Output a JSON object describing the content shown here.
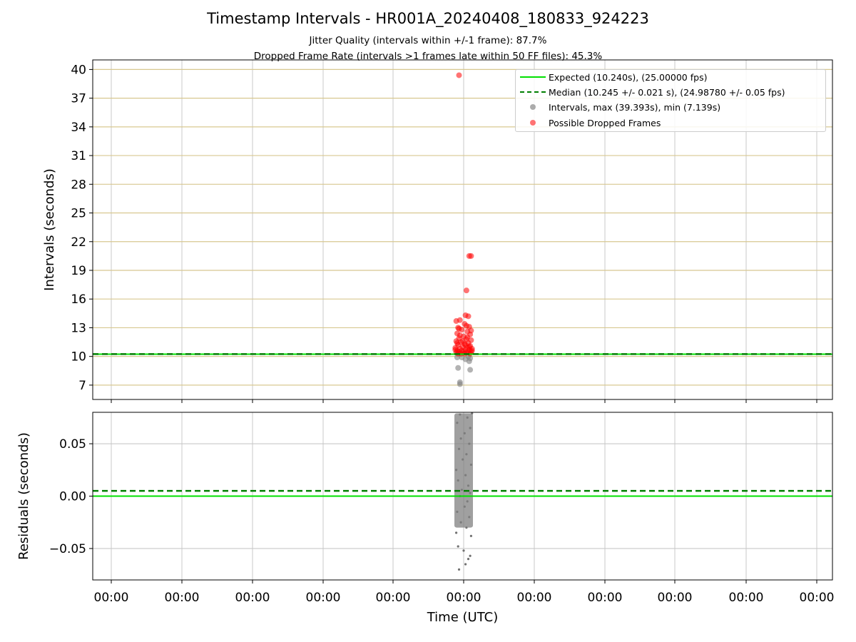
{
  "title": "Timestamp Intervals - HR001A_20240408_180833_924223",
  "subtitle_1": "Jitter Quality (intervals within +/-1 frame): 87.7%",
  "subtitle_2": "Dropped Frame Rate (intervals >1 frames late within 50 FF files): 45.3%",
  "legend": {
    "expected": "Expected (10.240s), (25.00000 fps)",
    "median": "Median (10.245 +/- 0.021 s), (24.98780 +/- 0.05 fps)",
    "intervals": "Intervals, max (39.393s), min (7.139s)",
    "dropped": "Possible Dropped Frames"
  },
  "colors": {
    "expected": "#00e000",
    "median": "#007f00",
    "intervals": "#808080",
    "dropped": "#ff0000",
    "hgrid_top": "#d8c890",
    "grid": "#c8c8c8"
  },
  "chart_data": [
    {
      "type": "scatter",
      "ylabel": "Intervals (seconds)",
      "ylim": [
        5.5,
        41
      ],
      "yticks": [
        7,
        10,
        13,
        16,
        19,
        22,
        25,
        28,
        31,
        34,
        37,
        40
      ],
      "ytick_labels": [
        "7",
        "10",
        "13",
        "16",
        "19",
        "22",
        "25",
        "28",
        "31",
        "34",
        "37",
        "40"
      ],
      "xtick_labels": [
        "00:00",
        "00:00",
        "00:00",
        "00:00",
        "00:00",
        "00:00",
        "00:00",
        "00:00",
        "00:00",
        "00:00",
        "00:00"
      ],
      "grid": true,
      "legend_position": "top-right",
      "expected_value": 10.24,
      "median_value": 10.245,
      "series": [
        {
          "name": "Intervals, max (39.393s), min (7.139s)",
          "points": [
            [
              -0.06,
              8.8
            ],
            [
              -0.04,
              7.3
            ],
            [
              -0.04,
              7.1
            ],
            [
              0.07,
              8.6
            ],
            [
              0.07,
              9.8
            ],
            [
              0.06,
              9.5
            ],
            [
              -0.07,
              9.9
            ],
            [
              0.02,
              9.7
            ],
            [
              0.05,
              10.0
            ],
            [
              -0.02,
              9.9
            ]
          ]
        },
        {
          "name": "Possible Dropped Frames",
          "points": [
            [
              -0.05,
              39.4
            ],
            [
              0.06,
              20.5
            ],
            [
              0.08,
              20.5
            ],
            [
              0.03,
              16.9
            ],
            [
              0.02,
              14.3
            ],
            [
              0.05,
              14.2
            ],
            [
              -0.04,
              13.8
            ],
            [
              -0.08,
              13.7
            ],
            [
              0.01,
              13.4
            ],
            [
              0.06,
              13.1
            ],
            [
              -0.06,
              13.0
            ],
            [
              -0.02,
              12.8
            ],
            [
              0.04,
              12.6
            ],
            [
              -0.07,
              12.4
            ],
            [
              0.07,
              12.3
            ],
            [
              0.0,
              12.1
            ],
            [
              -0.05,
              11.9
            ],
            [
              0.03,
              11.8
            ],
            [
              0.08,
              11.7
            ],
            [
              -0.08,
              11.6
            ],
            [
              -0.03,
              11.5
            ],
            [
              0.05,
              11.4
            ],
            [
              0.01,
              11.3
            ],
            [
              -0.06,
              11.2
            ],
            [
              0.07,
              11.1
            ],
            [
              -0.01,
              11.0
            ],
            [
              0.04,
              10.9
            ],
            [
              -0.09,
              10.9
            ],
            [
              0.09,
              10.8
            ],
            [
              -0.04,
              10.8
            ],
            [
              0.02,
              10.7
            ],
            [
              0.06,
              10.7
            ],
            [
              -0.07,
              10.6
            ],
            [
              -0.02,
              10.6
            ],
            [
              0.0,
              10.5
            ],
            [
              0.08,
              10.5
            ],
            [
              -0.05,
              10.5
            ],
            [
              0.03,
              10.4
            ],
            [
              -0.08,
              10.4
            ],
            [
              0.05,
              10.4
            ],
            [
              -0.03,
              10.3
            ],
            [
              0.01,
              10.3
            ],
            [
              0.07,
              10.3
            ],
            [
              -0.06,
              10.3
            ],
            [
              0.09,
              10.6
            ],
            [
              -0.09,
              10.7
            ],
            [
              0.02,
              11.2
            ],
            [
              -0.01,
              11.6
            ],
            [
              0.04,
              12.0
            ],
            [
              -0.04,
              12.2
            ],
            [
              0.06,
              11.0
            ],
            [
              -0.07,
              11.4
            ],
            [
              0.08,
              12.7
            ],
            [
              -0.05,
              12.9
            ],
            [
              0.03,
              13.2
            ]
          ]
        }
      ]
    },
    {
      "type": "scatter",
      "ylabel": "Residuals (seconds)",
      "xlabel": "Time (UTC)",
      "ylim": [
        -0.08,
        0.08
      ],
      "yticks": [
        -0.05,
        0.0,
        0.05
      ],
      "ytick_labels": [
        "−0.05",
        "0.00",
        "0.05"
      ],
      "xtick_labels": [
        "00:00",
        "00:00",
        "00:00",
        "00:00",
        "00:00",
        "00:00",
        "00:00",
        "00:00",
        "00:00",
        "00:00",
        "00:00"
      ],
      "grid": true,
      "expected_value": 0.0,
      "median_value": 0.005,
      "series": [
        {
          "name": "Residuals",
          "points": [
            [
              -0.05,
              -0.07
            ],
            [
              0.02,
              -0.065
            ],
            [
              0.05,
              -0.06
            ],
            [
              0.07,
              -0.057
            ],
            [
              0.0,
              -0.052
            ],
            [
              -0.06,
              -0.048
            ],
            [
              0.08,
              -0.038
            ],
            [
              -0.08,
              -0.035
            ],
            [
              0.03,
              -0.03
            ],
            [
              -0.03,
              -0.025
            ],
            [
              0.06,
              -0.02
            ],
            [
              -0.07,
              -0.015
            ],
            [
              0.01,
              -0.01
            ],
            [
              0.04,
              -0.005
            ],
            [
              -0.04,
              0.0
            ],
            [
              0.07,
              0.003
            ],
            [
              -0.02,
              0.006
            ],
            [
              0.05,
              0.01
            ],
            [
              -0.06,
              0.015
            ],
            [
              0.02,
              0.02
            ],
            [
              -0.08,
              0.025
            ],
            [
              0.08,
              0.03
            ],
            [
              -0.01,
              0.035
            ],
            [
              0.03,
              0.04
            ],
            [
              -0.05,
              0.045
            ],
            [
              0.06,
              0.05
            ],
            [
              -0.03,
              0.055
            ],
            [
              0.01,
              0.06
            ],
            [
              0.07,
              0.065
            ],
            [
              -0.07,
              0.07
            ],
            [
              0.04,
              0.075
            ],
            [
              -0.04,
              0.078
            ],
            [
              0.09,
              0.079
            ]
          ]
        }
      ]
    }
  ]
}
